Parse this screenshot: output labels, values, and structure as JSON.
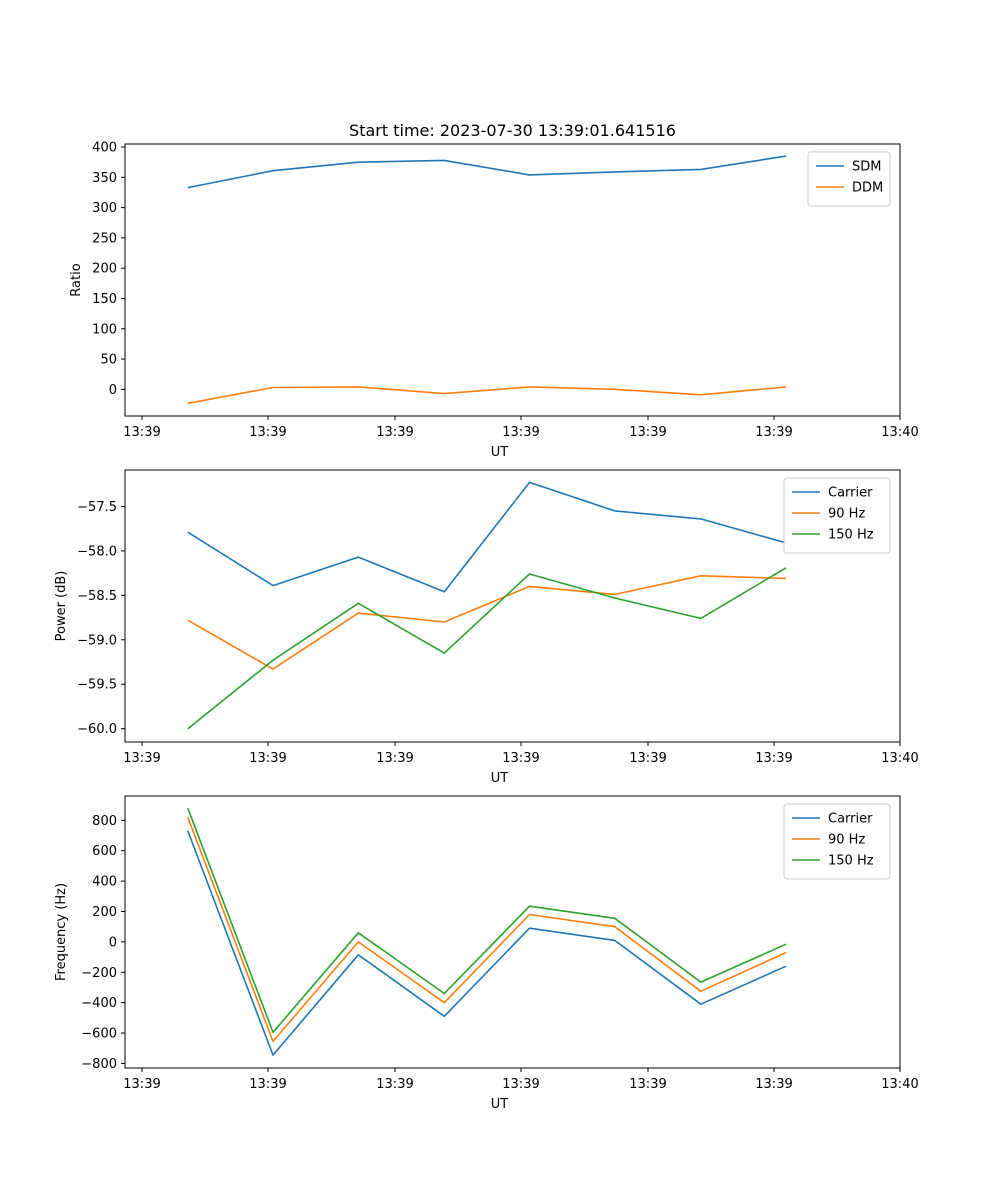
{
  "chart_data": [
    {
      "type": "line",
      "title": "Start time: 2023-07-30 13:39:01.641516",
      "xlabel": "UT",
      "ylabel": "Ratio",
      "x_tick_labels": [
        "13:39",
        "13:39",
        "13:39",
        "13:39",
        "13:39",
        "13:39",
        "13:39",
        "13:40"
      ],
      "xlim": [
        0,
        1
      ],
      "x": [
        0.081,
        0.191,
        0.301,
        0.412,
        0.522,
        0.632,
        0.743,
        0.853
      ],
      "ylim": [
        -44,
        405
      ],
      "yticks": [
        0,
        50,
        100,
        150,
        200,
        250,
        300,
        350,
        400
      ],
      "y_tick_labels": [
        "0",
        "50",
        "100",
        "150",
        "200",
        "250",
        "300",
        "350",
        "400"
      ],
      "legend_position": "upper right",
      "series": [
        {
          "name": "SDM",
          "color": "#1f77b4",
          "values": [
            333,
            361,
            375,
            378,
            354,
            359,
            363,
            385
          ]
        },
        {
          "name": "DDM",
          "color": "#ff7f0e",
          "values": [
            -23,
            3,
            4,
            -7,
            4,
            0,
            -9,
            4
          ]
        }
      ]
    },
    {
      "type": "line",
      "title": "",
      "xlabel": "UT",
      "ylabel": "Power (dB)",
      "x_tick_labels": [
        "13:39",
        "13:39",
        "13:39",
        "13:39",
        "13:39",
        "13:39",
        "13:39",
        "13:40"
      ],
      "xlim": [
        0,
        1
      ],
      "x": [
        0.081,
        0.191,
        0.301,
        0.412,
        0.522,
        0.632,
        0.743,
        0.853
      ],
      "ylim": [
        -60.15,
        -57.09
      ],
      "yticks": [
        -60.0,
        -59.5,
        -59.0,
        -58.5,
        -58.0,
        -57.5
      ],
      "y_tick_labels": [
        "−60.0",
        "−59.5",
        "−59.0",
        "−58.5",
        "−58.0",
        "−57.5"
      ],
      "legend_position": "upper right",
      "series": [
        {
          "name": "Carrier",
          "color": "#1f77b4",
          "values": [
            -57.79,
            -58.39,
            -58.07,
            -58.46,
            -57.23,
            -57.55,
            -57.64,
            -57.91
          ]
        },
        {
          "name": "90 Hz",
          "color": "#ff7f0e",
          "values": [
            -58.78,
            -59.33,
            -58.7,
            -58.8,
            -58.4,
            -58.49,
            -58.28,
            -58.31
          ]
        },
        {
          "name": "150 Hz",
          "color": "#2ca02c",
          "values": [
            -60.0,
            -59.23,
            -58.59,
            -59.15,
            -58.26,
            -58.53,
            -58.76,
            -58.19
          ]
        }
      ]
    },
    {
      "type": "line",
      "title": "",
      "xlabel": "UT",
      "ylabel": "Frequency (Hz)",
      "x_tick_labels": [
        "13:39",
        "13:39",
        "13:39",
        "13:39",
        "13:39",
        "13:39",
        "13:39",
        "13:40"
      ],
      "xlim": [
        0,
        1
      ],
      "x": [
        0.081,
        0.191,
        0.301,
        0.412,
        0.522,
        0.632,
        0.743,
        0.853
      ],
      "ylim": [
        -830,
        960
      ],
      "yticks": [
        -800,
        -600,
        -400,
        -200,
        0,
        200,
        400,
        600,
        800
      ],
      "y_tick_labels": [
        "−800",
        "−600",
        "−400",
        "−200",
        "0",
        "200",
        "400",
        "600",
        "800"
      ],
      "legend_position": "upper right",
      "series": [
        {
          "name": "Carrier",
          "color": "#1f77b4",
          "values": [
            730,
            -745,
            -85,
            -490,
            90,
            10,
            -410,
            -160
          ]
        },
        {
          "name": "90 Hz",
          "color": "#ff7f0e",
          "values": [
            820,
            -655,
            0,
            -400,
            180,
            100,
            -325,
            -70
          ]
        },
        {
          "name": "150 Hz",
          "color": "#2ca02c",
          "values": [
            880,
            -595,
            60,
            -340,
            235,
            155,
            -265,
            -15
          ]
        }
      ]
    }
  ]
}
